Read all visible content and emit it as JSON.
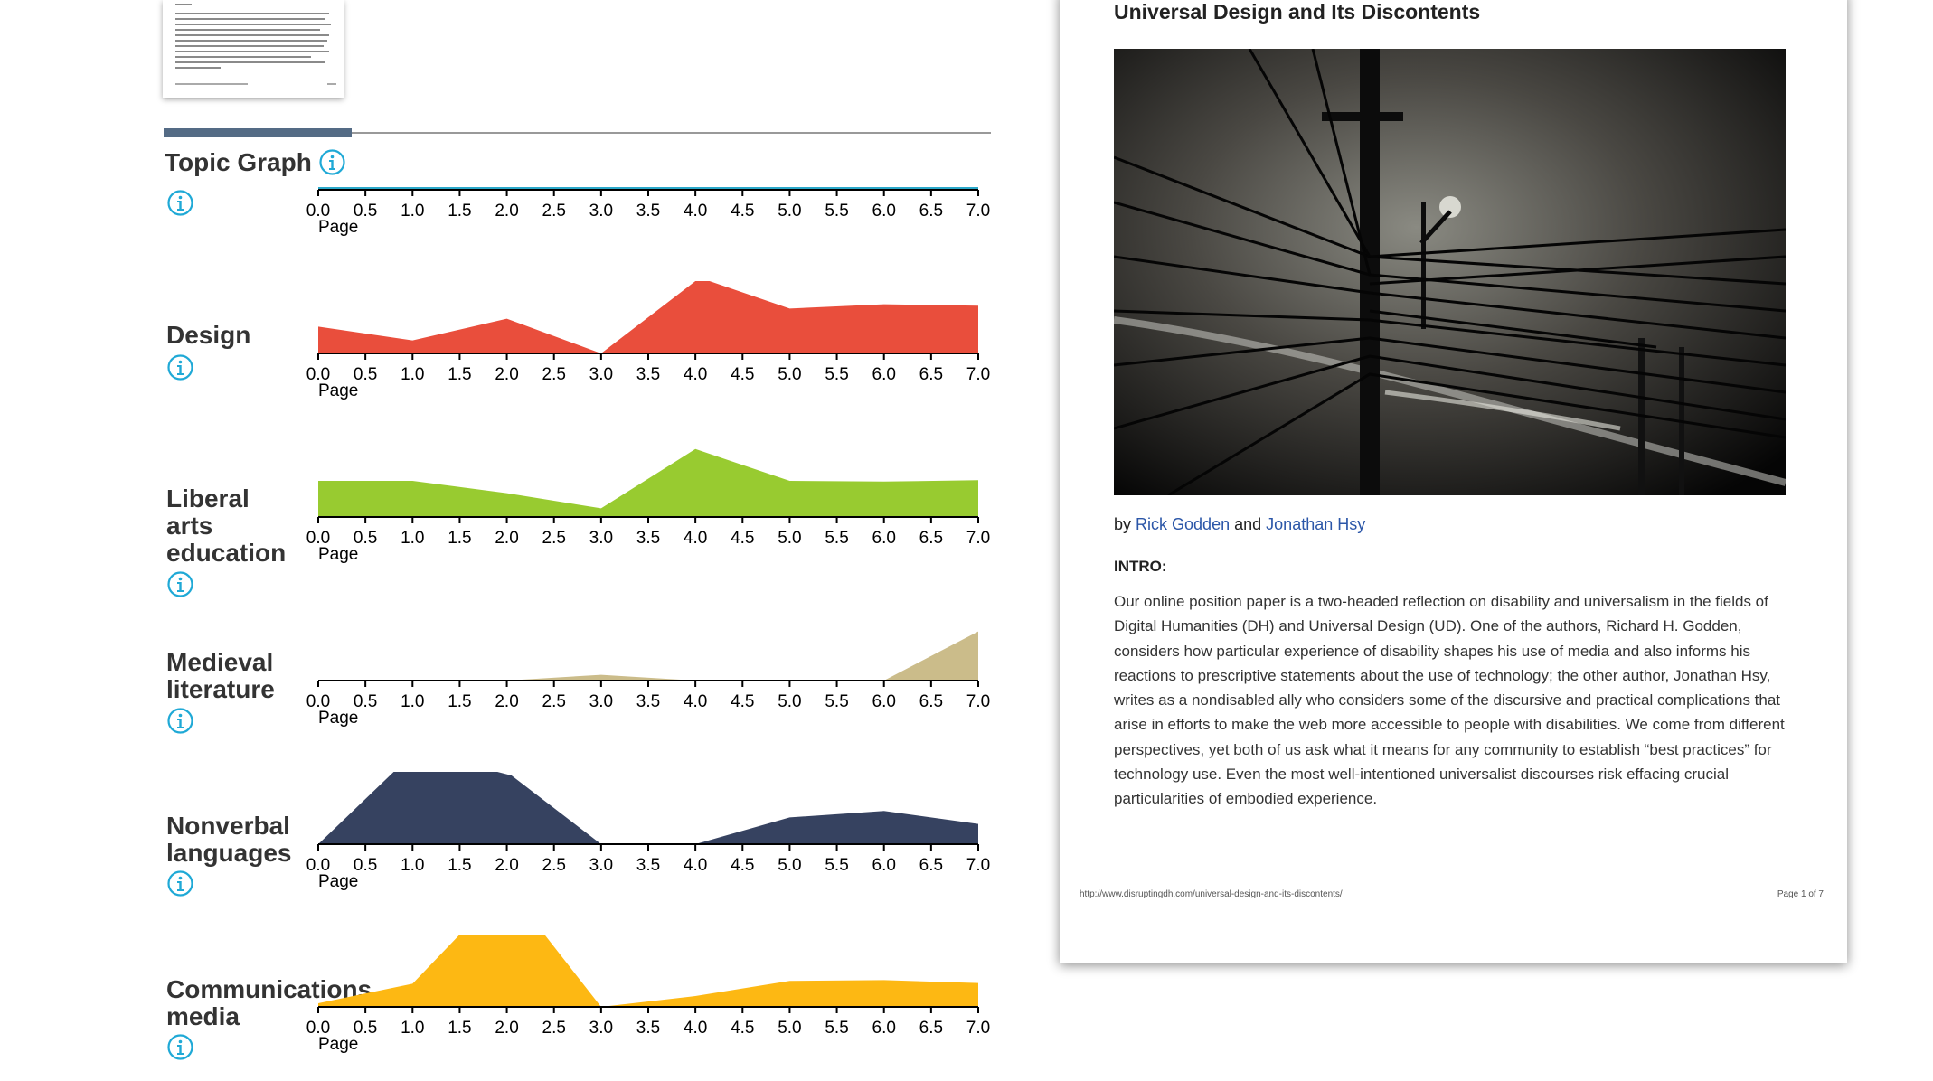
{
  "sections": {
    "topic_graph_title": "Topic Graph"
  },
  "colors": {
    "design": "#e94e3c",
    "liberal_arts": "#98cb30",
    "medieval": "#cbbc8a",
    "nonverbal": "#364260",
    "communications": "#fdb813",
    "info_icon": "#1fa9d6",
    "tab_active": "#546b85",
    "link": "#2b56a8"
  },
  "axis": {
    "ticks": [
      "0.0",
      "0.5",
      "1.0",
      "1.5",
      "2.0",
      "2.5",
      "3.0",
      "3.5",
      "4.0",
      "4.5",
      "5.0",
      "5.5",
      "6.0",
      "6.5",
      "7.0"
    ],
    "xlabel": "Page"
  },
  "topics": [
    {
      "label_lines": [
        "Design"
      ],
      "color": "#e94e3c"
    },
    {
      "label_lines": [
        "Liberal",
        "arts",
        "education"
      ],
      "color": "#98cb30"
    },
    {
      "label_lines": [
        "Medieval",
        "literature"
      ],
      "color": "#cbbc8a"
    },
    {
      "label_lines": [
        "Nonverbal",
        "languages"
      ],
      "color": "#364260"
    },
    {
      "label_lines": [
        "Communications",
        "media"
      ],
      "color": "#fdb813"
    }
  ],
  "chart_data": [
    {
      "type": "area",
      "title": "",
      "xlabel": "Page",
      "ylabel": "",
      "xlim": [
        0,
        7
      ],
      "x": [
        0,
        7
      ],
      "series": [
        {
          "values": [
            0,
            0
          ]
        }
      ]
    },
    {
      "type": "area",
      "title": "Design",
      "xlabel": "Page",
      "ylabel": "",
      "xlim": [
        0,
        7
      ],
      "x": [
        0,
        1,
        2,
        3,
        4,
        4.15,
        5,
        6,
        7
      ],
      "series": [
        {
          "name": "Design",
          "values": [
            0.37,
            0.18,
            0.48,
            0,
            1,
            1,
            0.62,
            0.68,
            0.66
          ]
        }
      ]
    },
    {
      "type": "area",
      "title": "Liberal arts education",
      "xlabel": "Page",
      "ylabel": "",
      "xlim": [
        0,
        7
      ],
      "x": [
        0,
        1,
        2,
        3,
        4,
        5,
        6,
        7
      ],
      "series": [
        {
          "name": "Liberal arts education",
          "values": [
            0.5,
            0.5,
            0.33,
            0.12,
            0.94,
            0.5,
            0.49,
            0.51
          ]
        }
      ]
    },
    {
      "type": "area",
      "title": "Medieval literature",
      "xlabel": "Page",
      "ylabel": "",
      "xlim": [
        0,
        7
      ],
      "x": [
        0,
        2,
        3,
        4,
        6,
        7
      ],
      "series": [
        {
          "name": "Medieval literature",
          "values": [
            0,
            0,
            0.08,
            0,
            0,
            0.68
          ]
        }
      ]
    },
    {
      "type": "area",
      "title": "Nonverbal languages",
      "xlabel": "Page",
      "ylabel": "",
      "xlim": [
        0,
        7
      ],
      "x": [
        0,
        0.8,
        1.9,
        2.05,
        3,
        4,
        5,
        6,
        7
      ],
      "series": [
        {
          "name": "Nonverbal languages",
          "values": [
            0,
            1,
            1,
            0.95,
            0,
            0,
            0.37,
            0.46,
            0.28
          ]
        }
      ]
    },
    {
      "type": "area",
      "title": "Communications media",
      "xlabel": "Page",
      "ylabel": "",
      "xlim": [
        0,
        7
      ],
      "x": [
        0,
        1,
        1.5,
        2.4,
        3,
        4,
        5,
        6,
        7
      ],
      "series": [
        {
          "name": "Communications media",
          "values": [
            0.05,
            0.32,
            1,
            1,
            0,
            0.15,
            0.36,
            0.37,
            0.33
          ]
        }
      ]
    }
  ],
  "document": {
    "title": "Universal Design and Its Discontents",
    "by": "by",
    "author1": "Rick Godden",
    "and": "and",
    "author2": "Jonathan Hsy",
    "intro_heading": "INTRO:",
    "intro_text": "Our online position paper is a two-headed reflection on disability and universalism in the fields of Digital Humanities (DH) and Universal Design (UD). One of the authors, Richard H. Godden, considers how particular experience of disability shapes his use of media and also informs his reactions to prescriptive statements about the use of technology; the other author, Jonathan Hsy, writes as a nondisabled ally who considers some of the discursive and practical complications that arise in efforts to make the web more accessible to people with disabilities. We come from different perspectives, yet both of us ask what it means for any community to establish “best practices” for technology use. Even the most well-intentioned universalist discourses risk effacing crucial particularities of embodied experience.",
    "footer_url": "http://www.disruptingdh.com/universal-design-and-its-discontents/",
    "footer_page": "Page 1 of 7"
  }
}
